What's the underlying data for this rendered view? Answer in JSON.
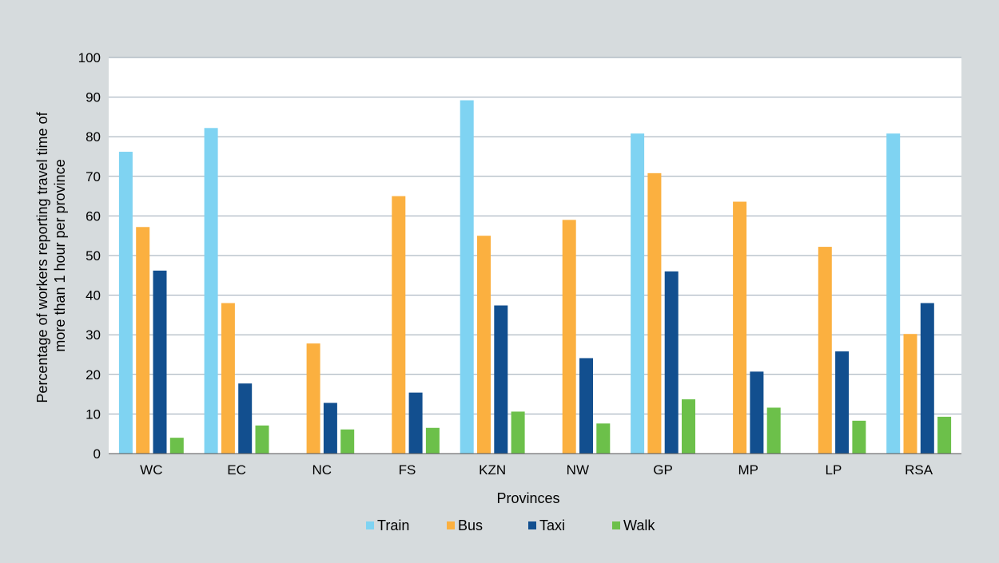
{
  "chart_data": {
    "type": "bar",
    "xlabel": "Provinces",
    "ylabel_lines": [
      "Percentage of workers reporting travel time of",
      "more than 1 hour per province"
    ],
    "ylim": [
      0,
      100
    ],
    "yticks": [
      0,
      10,
      20,
      30,
      40,
      50,
      60,
      70,
      80,
      90,
      100
    ],
    "categories": [
      "WC",
      "EC",
      "NC",
      "FS",
      "KZN",
      "NW",
      "GP",
      "MP",
      "LP",
      "RSA"
    ],
    "series": [
      {
        "name": "Train",
        "color": "#7fd3f2",
        "values": [
          76.2,
          82.2,
          null,
          null,
          89.2,
          null,
          80.8,
          null,
          null,
          80.8
        ]
      },
      {
        "name": "Bus",
        "color": "#fbb040",
        "values": [
          57.2,
          38.0,
          27.8,
          65.0,
          55.0,
          59.0,
          70.8,
          63.6,
          52.2,
          30.2
        ]
      },
      {
        "name": "Taxi",
        "color": "#124f8f",
        "values": [
          46.2,
          17.7,
          12.8,
          15.4,
          37.4,
          24.1,
          46.0,
          20.7,
          25.8,
          38.0
        ]
      },
      {
        "name": "Walk",
        "color": "#6cc04a",
        "values": [
          4.0,
          7.1,
          6.1,
          6.5,
          10.6,
          7.6,
          13.7,
          11.6,
          8.3,
          9.3
        ]
      }
    ],
    "grid": true,
    "legend_position": "bottom"
  }
}
